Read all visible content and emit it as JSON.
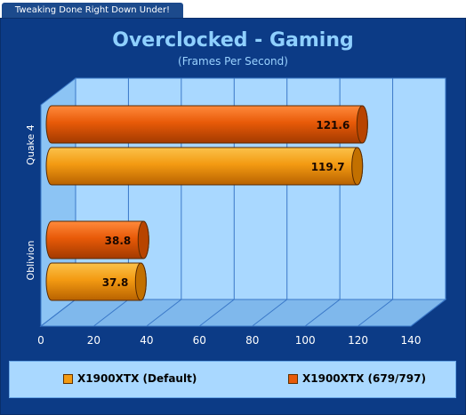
{
  "header": {
    "tab_text": "Tweaking Done Right Down Under!"
  },
  "chart_data": {
    "type": "bar",
    "orientation": "horizontal",
    "title": "Overclocked - Gaming",
    "subtitle": "(Frames Per Second)",
    "categories": [
      "Quake 4",
      "Oblivion"
    ],
    "series": [
      {
        "name": "X1900XTX (679/797)",
        "values": [
          121.6,
          38.8
        ],
        "color": "#e85a08"
      },
      {
        "name": "X1900XTX (Default)",
        "values": [
          119.7,
          37.8
        ],
        "color": "#f39a12"
      }
    ],
    "xlim": [
      0,
      140
    ],
    "xticks": [
      0,
      20,
      40,
      60,
      80,
      100,
      120,
      140
    ],
    "grid": true,
    "legend_position": "bottom"
  },
  "legend": {
    "items": [
      {
        "label": "X1900XTX (Default)",
        "color": "#f39a12"
      },
      {
        "label": "X1900XTX (679/797)",
        "color": "#e85a08"
      }
    ]
  },
  "colors": {
    "background": "#0c3b86",
    "plot_wall": "#a9d8ff",
    "grid": "#3a78c8",
    "title": "#8fd0ff"
  }
}
